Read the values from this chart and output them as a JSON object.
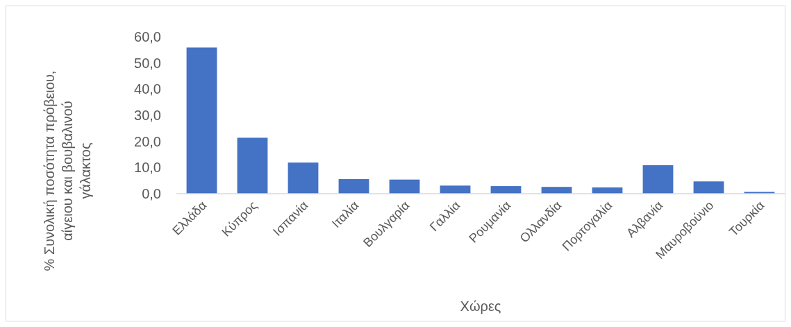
{
  "chart_data": {
    "type": "bar",
    "xlabel": "Χώρες",
    "ylabel": "% Συνολική ποσότητα πρόβειου,\nαίγειου και βουβαλινού\nγάλακτος",
    "categories": [
      "Ελλάδα",
      "Κύπρος",
      "Ισπανία",
      "Ιταλία",
      "Βουλγαρία",
      "Γαλλία",
      "Ρουμανία",
      "Ολλανδία",
      "Πορτογαλία",
      "Αλβανία",
      "Μαυροβούνιο",
      "Τουρκία"
    ],
    "values": [
      55.9,
      21.4,
      11.9,
      5.6,
      5.4,
      3.1,
      2.9,
      2.6,
      2.4,
      10.9,
      4.7,
      0.7
    ],
    "color": "#4472c4",
    "ylim": [
      0,
      60
    ],
    "yticks": [
      {
        "value": 0,
        "label": "0,0"
      },
      {
        "value": 10,
        "label": "10,0"
      },
      {
        "value": 20,
        "label": "20,0"
      },
      {
        "value": 30,
        "label": "30,0"
      },
      {
        "value": 40,
        "label": "40,0"
      },
      {
        "value": 50,
        "label": "50,0"
      },
      {
        "value": 60,
        "label": "60,0"
      }
    ],
    "grid": false
  }
}
